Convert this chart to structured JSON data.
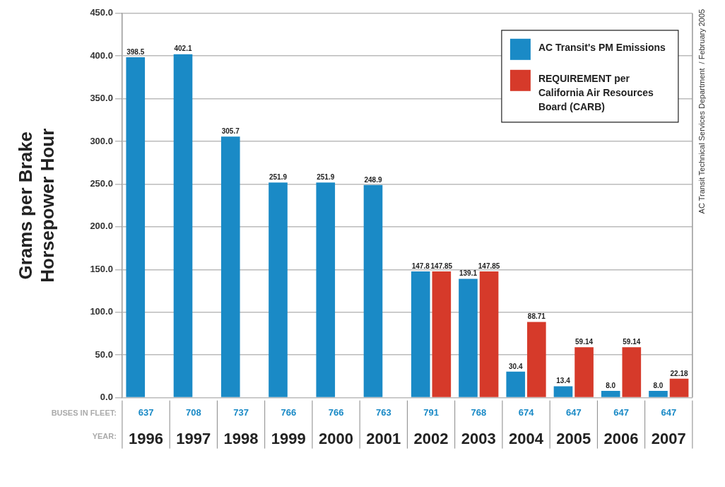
{
  "chart_data": {
    "type": "bar",
    "ylabel": "Grams per Brake Horsepower Hour",
    "xlabel": "YEAR:",
    "categories": [
      "1996",
      "1997",
      "1998",
      "1999",
      "2000",
      "2001",
      "2002",
      "2003",
      "2004",
      "2005",
      "2006",
      "2007"
    ],
    "series": [
      {
        "name": "AC Transit's PM Emissions",
        "color": "#1a8ac6",
        "values": [
          398.5,
          402.1,
          305.7,
          251.9,
          251.9,
          248.9,
          147.8,
          139.1,
          30.4,
          13.4,
          8.0,
          8.0
        ],
        "value_labels": [
          "398.5",
          "402.1",
          "305.7",
          "251.9",
          "251.9",
          "248.9",
          "147.8",
          "139.1",
          "30.4",
          "13.4",
          "8.0",
          "8.0"
        ]
      },
      {
        "name": "REQUIREMENT per California Air Resources Board (CARB)",
        "color": "#d63a2a",
        "values": [
          null,
          null,
          null,
          null,
          null,
          null,
          147.85,
          147.85,
          88.71,
          59.14,
          59.14,
          22.18
        ],
        "value_labels": [
          null,
          null,
          null,
          null,
          null,
          null,
          "147.85",
          "147.85",
          "88.71",
          "59.14",
          "59.14",
          "22.18"
        ]
      }
    ],
    "ylim": [
      0,
      450
    ],
    "yticks": [
      {
        "value": 0,
        "label": "0.0"
      },
      {
        "value": 50,
        "label": "50.0"
      },
      {
        "value": 100,
        "label": "100.0"
      },
      {
        "value": 150,
        "label": "150.0"
      },
      {
        "value": 200,
        "label": "200.0"
      },
      {
        "value": 250,
        "label": "250.0"
      },
      {
        "value": 300,
        "label": "300.0"
      },
      {
        "value": 350,
        "label": "350.0"
      },
      {
        "value": 400,
        "label": "400.0"
      },
      {
        "value": 450,
        "label": "450.0"
      }
    ],
    "grid": "y",
    "legend": "top right",
    "annotations": [
      "BUSES IN FLEET:",
      "637",
      "708",
      "737",
      "766",
      "766",
      "763",
      "791",
      "768",
      "674",
      "647",
      "647",
      "647",
      "AC Transit Technical Services Department  / February 2005"
    ]
  }
}
